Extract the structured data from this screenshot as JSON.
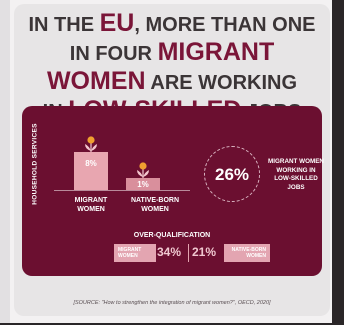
{
  "headline": {
    "l1a": "IN THE ",
    "l1b": "EU",
    "l1c": ", MORE THAN ONE",
    "l2a": "IN FOUR ",
    "l2b": "MIGRANT",
    "l3a": "WOMEN",
    "l3b": " ARE WORKING",
    "l4a": "IN ",
    "l4b": "LOW-SKILLED",
    "l4c": " JOBS"
  },
  "chart_data": [
    {
      "type": "bar",
      "ylabel": "HOUSEHOLD SERVICES",
      "categories": [
        "MIGRANT WOMEN",
        "NATIVE-BORN WOMEN"
      ],
      "values": [
        8,
        1
      ],
      "value_labels": [
        "8%",
        "1%"
      ],
      "category_lines": [
        [
          "MIGRANT",
          "WOMEN"
        ],
        [
          "NATIVE-BORN",
          "WOMEN"
        ]
      ]
    },
    {
      "type": "bar",
      "title": "OVER-QUALIFICATION",
      "categories": [
        "MIGRANT WOMEN",
        "NATIVE-BORN WOMEN"
      ],
      "values": [
        34,
        21
      ],
      "value_labels": [
        "34%",
        "21%"
      ]
    }
  ],
  "stat": {
    "value": "26%",
    "lines": [
      "MIGRANT WOMEN",
      "WORKING IN",
      "LOW-SKILLED JOBS"
    ]
  },
  "overq": {
    "left_lines": [
      "MIGRANT",
      "WOMEN"
    ],
    "right_lines": [
      "NATIVE-BORN",
      "WOMEN"
    ]
  },
  "source": "[SOURCE: \"How to strengthen the integration of migrant women?\", OECD, 2020]",
  "colors": {
    "primary": "#6b0f30",
    "accent": "#e3a5b1",
    "bar_high": "#e8a6b0",
    "bar_low": "#d98f9c",
    "flower": "#f0a030"
  }
}
